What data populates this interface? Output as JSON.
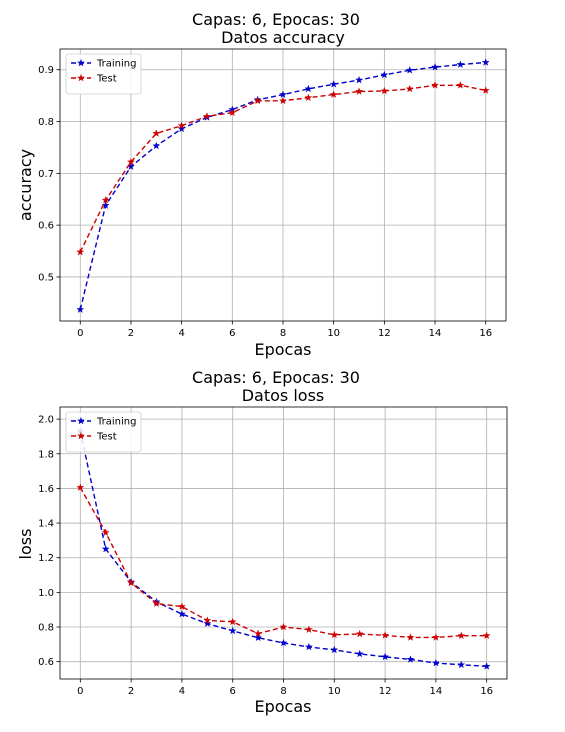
{
  "chart_data": [
    {
      "type": "line",
      "title": "Capas: 6, Epocas: 30",
      "subtitle": "Datos accuracy",
      "xlabel": "Epocas",
      "ylabel": "accuracy",
      "xlim": [
        -0.8,
        16.8
      ],
      "ylim": [
        0.415,
        0.94
      ],
      "xticks": [
        0,
        2,
        4,
        6,
        8,
        10,
        12,
        14,
        16
      ],
      "yticks": [
        0.5,
        0.6,
        0.7,
        0.8,
        0.9
      ],
      "grid": true,
      "legend_position": "top-left",
      "x": [
        0,
        1,
        2,
        3,
        4,
        5,
        6,
        7,
        8,
        9,
        10,
        11,
        12,
        13,
        14,
        15,
        16
      ],
      "series": [
        {
          "name": "Training",
          "color": "#0000cc",
          "values": [
            0.437,
            0.638,
            0.713,
            0.753,
            0.786,
            0.808,
            0.823,
            0.842,
            0.852,
            0.863,
            0.872,
            0.88,
            0.89,
            0.899,
            0.905,
            0.91,
            0.914
          ]
        },
        {
          "name": "Test",
          "color": "#cc0000",
          "values": [
            0.548,
            0.648,
            0.722,
            0.777,
            0.792,
            0.81,
            0.817,
            0.84,
            0.84,
            0.846,
            0.852,
            0.858,
            0.859,
            0.863,
            0.87,
            0.87,
            0.86
          ]
        }
      ]
    },
    {
      "type": "line",
      "title": "Capas: 6, Epocas: 30",
      "subtitle": "Datos loss",
      "xlabel": "Epocas",
      "ylabel": "loss",
      "xlim": [
        -0.8,
        16.8
      ],
      "ylim": [
        0.5,
        2.07
      ],
      "xticks": [
        0,
        2,
        4,
        6,
        8,
        10,
        12,
        14,
        16
      ],
      "yticks": [
        0.6,
        0.8,
        1.0,
        1.2,
        1.4,
        1.6,
        1.8,
        2.0
      ],
      "grid": true,
      "legend_position": "top-left",
      "x": [
        0,
        1,
        2,
        3,
        4,
        5,
        6,
        7,
        8,
        9,
        10,
        11,
        12,
        13,
        14,
        15,
        16
      ],
      "series": [
        {
          "name": "Training",
          "color": "#0000cc",
          "values": [
            1.93,
            1.25,
            1.06,
            0.945,
            0.875,
            0.82,
            0.778,
            0.738,
            0.708,
            0.685,
            0.668,
            0.645,
            0.628,
            0.613,
            0.592,
            0.582,
            0.573
          ]
        },
        {
          "name": "Test",
          "color": "#cc0000",
          "values": [
            1.605,
            1.345,
            1.055,
            0.935,
            0.918,
            0.838,
            0.83,
            0.762,
            0.8,
            0.785,
            0.755,
            0.76,
            0.752,
            0.74,
            0.74,
            0.75,
            0.75
          ]
        }
      ]
    }
  ]
}
